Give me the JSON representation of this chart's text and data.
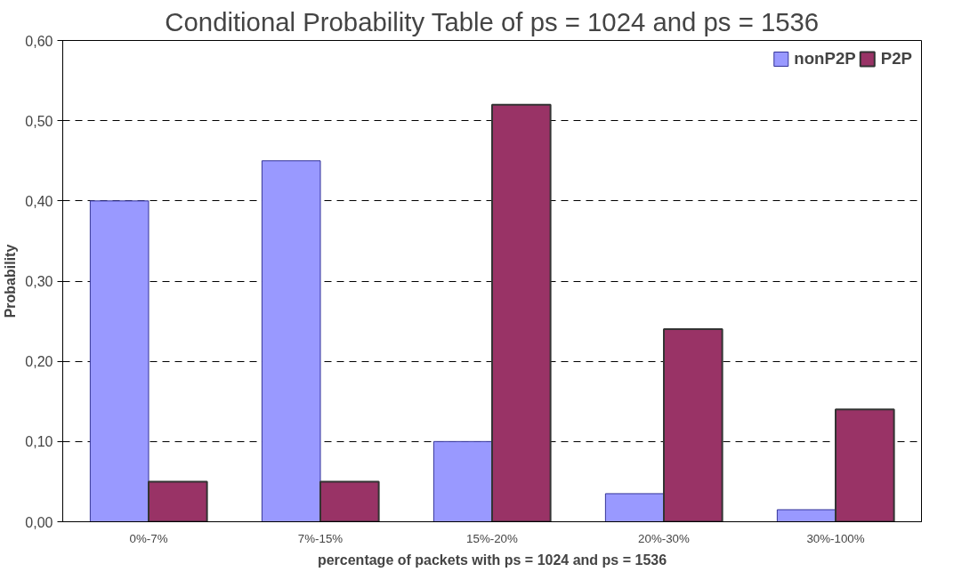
{
  "chart_data": {
    "type": "bar",
    "title": "Conditional Probability Table of ps = 1024 and ps = 1536",
    "xlabel": "percentage of packets with ps = 1024 and ps = 1536",
    "ylabel": "Probability",
    "categories": [
      "0%-7%",
      "7%-15%",
      "15%-20%",
      "20%-30%",
      "30%-100%"
    ],
    "series": [
      {
        "name": "nonP2P",
        "color": "#9999ff",
        "values": [
          0.4,
          0.45,
          0.1,
          0.035,
          0.015
        ]
      },
      {
        "name": "P2P",
        "color": "#993366",
        "values": [
          0.05,
          0.05,
          0.52,
          0.24,
          0.14
        ]
      }
    ],
    "ylim": [
      0,
      0.6
    ],
    "yticks": [
      {
        "value": 0,
        "label": "0,00"
      },
      {
        "value": 0.1,
        "label": "0,10"
      },
      {
        "value": 0.2,
        "label": "0,20"
      },
      {
        "value": 0.3,
        "label": "0,30"
      },
      {
        "value": 0.4,
        "label": "0,40"
      },
      {
        "value": 0.5,
        "label": "0,50"
      },
      {
        "value": 0.6,
        "label": "0,60"
      }
    ],
    "grid": "y",
    "legend": "top right"
  }
}
